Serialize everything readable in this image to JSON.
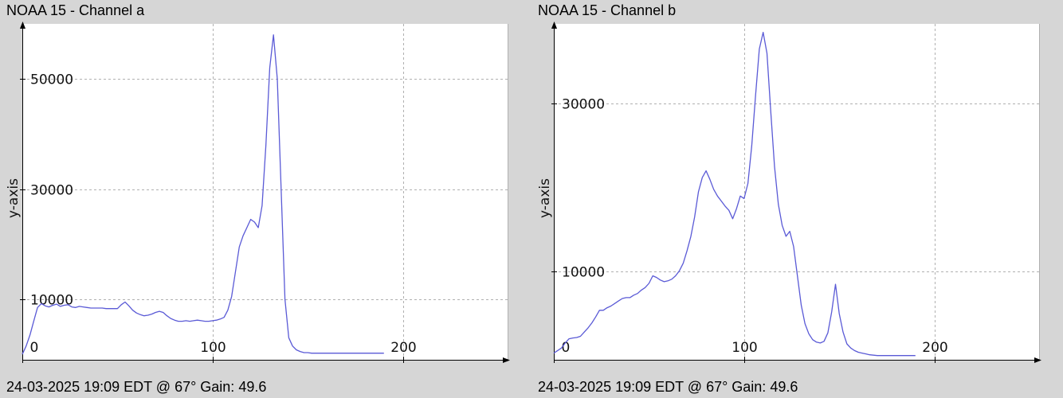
{
  "panels": [
    {
      "title": "NOAA 15 - Channel a",
      "footer": "24-03-2025 19:09 EDT @ 67° Gain: 49.6"
    },
    {
      "title": "NOAA 15 - Channel b",
      "footer": "24-03-2025 19:09 EDT @ 67° Gain: 49.6"
    }
  ],
  "colors": {
    "background": "#d6d6d6",
    "plot_area": "#ffffff",
    "line": "#5a5ad6",
    "grid": "#b0b0b0",
    "axis": "#000000"
  },
  "chart_data": [
    {
      "type": "line",
      "title": "NOAA 15 - Channel a",
      "xlabel": "",
      "ylabel": "y-axis",
      "xlim": [
        0,
        255
      ],
      "ylim": [
        -1000,
        60000
      ],
      "xticks": [
        0,
        100,
        200
      ],
      "xtick_labels": [
        "0",
        "100",
        "200"
      ],
      "yticks": [
        10000,
        30000,
        50000
      ],
      "ytick_labels": [
        "10000",
        "30000",
        "50000"
      ],
      "grid": true,
      "legend": "none",
      "series": [
        {
          "x": [
            0,
            2,
            4,
            6,
            8,
            10,
            12,
            14,
            16,
            18,
            20,
            22,
            24,
            26,
            28,
            30,
            32,
            34,
            36,
            38,
            40,
            42,
            44,
            46,
            48,
            50,
            52,
            54,
            56,
            58,
            60,
            62,
            64,
            66,
            68,
            70,
            72,
            74,
            76,
            78,
            80,
            82,
            84,
            86,
            88,
            90,
            92,
            94,
            96,
            98,
            100,
            102,
            104,
            106,
            108,
            110,
            112,
            114,
            116,
            118,
            120,
            122,
            124,
            126,
            128,
            130,
            132,
            134,
            136,
            138,
            140,
            142,
            144,
            146,
            148,
            150,
            152,
            154,
            156,
            158,
            160,
            162,
            164,
            166,
            168,
            170,
            172,
            174,
            176,
            178,
            180,
            182,
            184,
            186,
            188,
            190
          ],
          "y": [
            0,
            1500,
            3500,
            6000,
            8500,
            9200,
            8800,
            8600,
            8900,
            9100,
            8700,
            8900,
            9000,
            8600,
            8500,
            8700,
            8600,
            8500,
            8400,
            8400,
            8400,
            8400,
            8300,
            8300,
            8300,
            8300,
            9000,
            9500,
            8800,
            8000,
            7500,
            7200,
            7000,
            7100,
            7300,
            7600,
            7800,
            7600,
            7000,
            6500,
            6200,
            6000,
            6000,
            6100,
            6000,
            6100,
            6200,
            6100,
            6000,
            6000,
            6100,
            6200,
            6400,
            6700,
            8000,
            10500,
            15000,
            19500,
            21500,
            23000,
            24500,
            24000,
            23000,
            27000,
            38000,
            52000,
            58000,
            50000,
            30000,
            10000,
            3000,
            1500,
            800,
            500,
            300,
            300,
            200,
            200,
            200,
            200,
            200,
            200,
            200,
            200,
            200,
            200,
            200,
            200,
            200,
            200,
            200,
            200,
            200,
            200,
            200,
            200
          ]
        }
      ]
    },
    {
      "type": "line",
      "title": "NOAA 15 - Channel b",
      "xlabel": "",
      "ylabel": "y-axis",
      "xlim": [
        0,
        255
      ],
      "ylim": [
        -500,
        39500
      ],
      "xticks": [
        0,
        100,
        200
      ],
      "xtick_labels": [
        "0",
        "100",
        "200"
      ],
      "yticks": [
        10000,
        30000
      ],
      "ytick_labels": [
        "10000",
        "30000"
      ],
      "grid": true,
      "legend": "none",
      "series": [
        {
          "x": [
            0,
            2,
            4,
            6,
            8,
            10,
            12,
            14,
            16,
            18,
            20,
            22,
            24,
            26,
            28,
            30,
            32,
            34,
            36,
            38,
            40,
            42,
            44,
            46,
            48,
            50,
            52,
            54,
            56,
            58,
            60,
            62,
            64,
            66,
            68,
            70,
            72,
            74,
            76,
            78,
            80,
            82,
            84,
            86,
            88,
            90,
            92,
            94,
            96,
            98,
            100,
            102,
            104,
            106,
            108,
            110,
            112,
            114,
            116,
            118,
            120,
            122,
            124,
            126,
            128,
            130,
            132,
            134,
            136,
            138,
            140,
            142,
            144,
            146,
            148,
            150,
            152,
            154,
            156,
            158,
            160,
            162,
            164,
            166,
            168,
            170,
            172,
            174,
            176,
            178,
            180,
            182,
            184,
            186,
            188,
            190
          ],
          "y": [
            300,
            600,
            900,
            1500,
            2000,
            2100,
            2150,
            2300,
            2800,
            3300,
            3900,
            4600,
            5400,
            5400,
            5700,
            5900,
            6200,
            6500,
            6800,
            6900,
            6900,
            7200,
            7400,
            7800,
            8100,
            8600,
            9500,
            9300,
            9000,
            8800,
            8900,
            9100,
            9500,
            10100,
            11000,
            12500,
            14200,
            16500,
            19500,
            21200,
            22000,
            21000,
            19800,
            19000,
            18400,
            17800,
            17300,
            16300,
            17500,
            19000,
            18700,
            20500,
            25000,
            31000,
            36500,
            38500,
            36000,
            29000,
            22500,
            18000,
            15500,
            14200,
            14800,
            13000,
            9500,
            6000,
            3800,
            2600,
            1900,
            1600,
            1500,
            1700,
            2700,
            5200,
            8500,
            5000,
            2800,
            1400,
            900,
            600,
            400,
            300,
            200,
            100,
            50,
            0,
            0,
            0,
            0,
            0,
            0,
            0,
            0,
            0,
            0,
            0
          ]
        }
      ]
    }
  ]
}
